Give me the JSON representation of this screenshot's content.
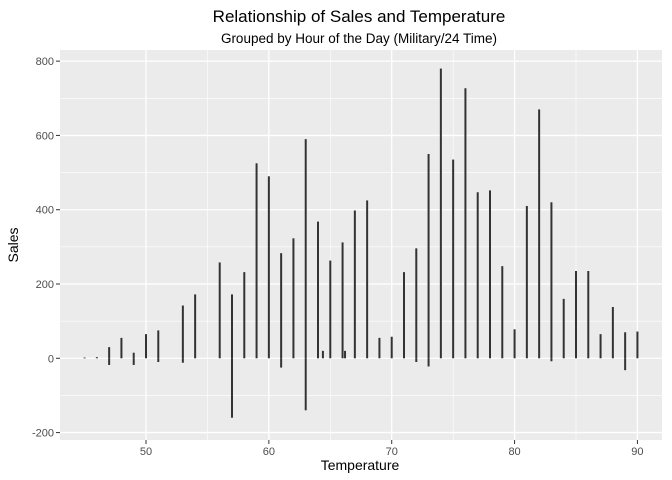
{
  "chart_data": {
    "type": "bar",
    "title": "Relationship of Sales and Temperature",
    "subtitle": "Grouped by Hour of the Day (Military/24 Time)",
    "xlabel": "Temperature",
    "ylabel": "Sales",
    "xlim": [
      43,
      92
    ],
    "ylim": [
      -220,
      830
    ],
    "x_ticks": [
      50,
      60,
      70,
      80,
      90
    ],
    "y_ticks": [
      -200,
      0,
      200,
      400,
      600,
      800
    ],
    "x_tick_labels": [
      "50",
      "60",
      "70",
      "80",
      "90"
    ],
    "y_tick_labels": [
      "-200",
      "0",
      "200",
      "400",
      "600",
      "800"
    ],
    "grid": true,
    "bar_color": "#333333",
    "panel_color": "#ebebeb",
    "grid_color": "#ffffff",
    "points": [
      {
        "x": 45,
        "y": 2
      },
      {
        "x": 46,
        "y": 3
      },
      {
        "x": 47,
        "y": 30
      },
      {
        "x": 47,
        "y": -18
      },
      {
        "x": 48,
        "y": 55
      },
      {
        "x": 49,
        "y": 15
      },
      {
        "x": 49,
        "y": -18
      },
      {
        "x": 50,
        "y": 65
      },
      {
        "x": 51,
        "y": 75
      },
      {
        "x": 51,
        "y": -10
      },
      {
        "x": 53,
        "y": 142
      },
      {
        "x": 53,
        "y": -12
      },
      {
        "x": 54,
        "y": 172
      },
      {
        "x": 56,
        "y": 258
      },
      {
        "x": 57,
        "y": 172
      },
      {
        "x": 57,
        "y": -160
      },
      {
        "x": 58,
        "y": 232
      },
      {
        "x": 59,
        "y": 525
      },
      {
        "x": 60,
        "y": 490
      },
      {
        "x": 61,
        "y": 283
      },
      {
        "x": 61,
        "y": -25
      },
      {
        "x": 62,
        "y": 323
      },
      {
        "x": 63,
        "y": 590
      },
      {
        "x": 63,
        "y": -140
      },
      {
        "x": 64,
        "y": 368
      },
      {
        "x": 64.4,
        "y": 20
      },
      {
        "x": 65,
        "y": 263
      },
      {
        "x": 66,
        "y": 312
      },
      {
        "x": 66.2,
        "y": 20
      },
      {
        "x": 67,
        "y": 398
      },
      {
        "x": 68,
        "y": 425
      },
      {
        "x": 69,
        "y": 55
      },
      {
        "x": 70,
        "y": 58
      },
      {
        "x": 71,
        "y": 232
      },
      {
        "x": 72,
        "y": 296
      },
      {
        "x": 72,
        "y": -10
      },
      {
        "x": 73,
        "y": 550
      },
      {
        "x": 73,
        "y": -22
      },
      {
        "x": 74,
        "y": 780
      },
      {
        "x": 75,
        "y": 535
      },
      {
        "x": 76,
        "y": 727
      },
      {
        "x": 77,
        "y": 447
      },
      {
        "x": 78,
        "y": 452
      },
      {
        "x": 79,
        "y": 248
      },
      {
        "x": 80,
        "y": 78
      },
      {
        "x": 81,
        "y": 410
      },
      {
        "x": 82,
        "y": 670
      },
      {
        "x": 83,
        "y": 420
      },
      {
        "x": 83,
        "y": -8
      },
      {
        "x": 84,
        "y": 160
      },
      {
        "x": 85,
        "y": 235
      },
      {
        "x": 86,
        "y": 235
      },
      {
        "x": 87,
        "y": 65
      },
      {
        "x": 88,
        "y": 138
      },
      {
        "x": 89,
        "y": 70
      },
      {
        "x": 89,
        "y": -32
      },
      {
        "x": 90,
        "y": 72
      }
    ]
  }
}
